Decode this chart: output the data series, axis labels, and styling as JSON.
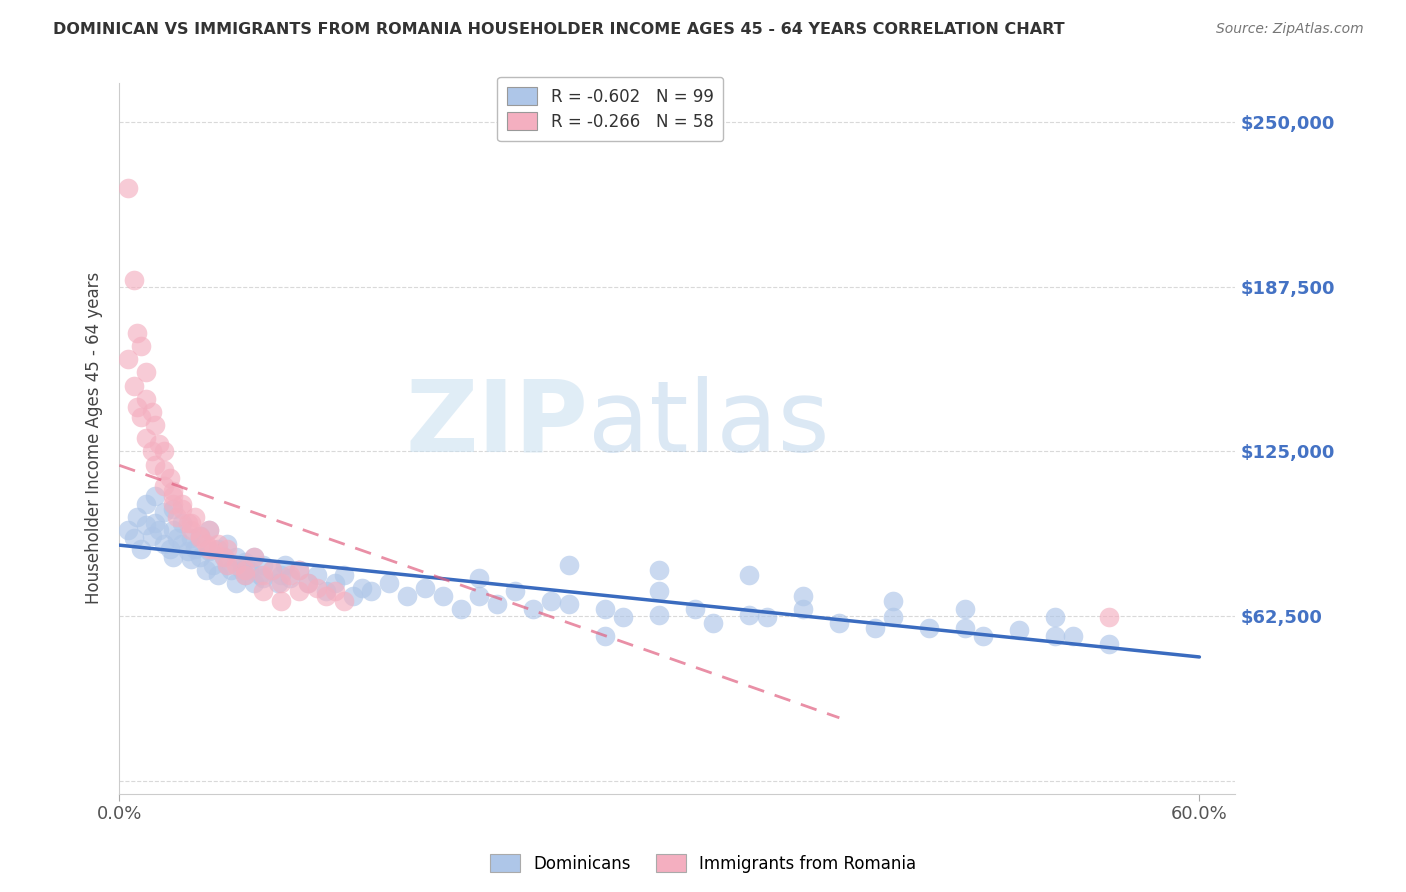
{
  "title": "DOMINICAN VS IMMIGRANTS FROM ROMANIA HOUSEHOLDER INCOME AGES 45 - 64 YEARS CORRELATION CHART",
  "source": "Source: ZipAtlas.com",
  "ylabel": "Householder Income Ages 45 - 64 years",
  "xlim": [
    0.0,
    0.62
  ],
  "ylim": [
    -5000,
    265000
  ],
  "yticks": [
    0,
    62500,
    125000,
    187500,
    250000
  ],
  "ytick_labels": [
    "",
    "$62,500",
    "$125,000",
    "$187,500",
    "$250,000"
  ],
  "xticks": [
    0.0,
    0.6
  ],
  "xtick_labels": [
    "0.0%",
    "60.0%"
  ],
  "dominican_R": -0.602,
  "dominican_N": 99,
  "romania_R": -0.266,
  "romania_N": 58,
  "dominican_color": "#aec6e8",
  "romania_color": "#f4afc0",
  "dominican_line_color": "#3a6bbf",
  "romania_line_color": "#e06080",
  "background_color": "#ffffff",
  "watermark_zip": "ZIP",
  "watermark_atlas": "atlas",
  "grid_color": "#d0d0d0",
  "title_color": "#333333",
  "axis_label_color": "#444444",
  "right_tick_color": "#4472c4",
  "dominican_x": [
    0.005,
    0.008,
    0.01,
    0.012,
    0.015,
    0.015,
    0.018,
    0.02,
    0.02,
    0.022,
    0.025,
    0.025,
    0.028,
    0.03,
    0.03,
    0.03,
    0.032,
    0.035,
    0.035,
    0.038,
    0.04,
    0.04,
    0.042,
    0.045,
    0.045,
    0.048,
    0.05,
    0.05,
    0.052,
    0.055,
    0.055,
    0.058,
    0.06,
    0.06,
    0.062,
    0.065,
    0.065,
    0.068,
    0.07,
    0.07,
    0.072,
    0.075,
    0.075,
    0.078,
    0.08,
    0.08,
    0.085,
    0.088,
    0.09,
    0.092,
    0.095,
    0.1,
    0.105,
    0.11,
    0.115,
    0.12,
    0.125,
    0.13,
    0.135,
    0.14,
    0.15,
    0.16,
    0.17,
    0.18,
    0.19,
    0.2,
    0.21,
    0.22,
    0.23,
    0.24,
    0.25,
    0.27,
    0.28,
    0.3,
    0.32,
    0.33,
    0.35,
    0.36,
    0.38,
    0.4,
    0.42,
    0.43,
    0.45,
    0.47,
    0.48,
    0.5,
    0.52,
    0.53,
    0.55,
    0.27,
    0.3,
    0.38,
    0.2,
    0.43,
    0.47,
    0.52,
    0.35,
    0.25,
    0.3
  ],
  "dominican_y": [
    95000,
    92000,
    100000,
    88000,
    105000,
    97000,
    93000,
    108000,
    98000,
    95000,
    90000,
    102000,
    88000,
    95000,
    103000,
    85000,
    92000,
    90000,
    98000,
    87000,
    92000,
    84000,
    88000,
    93000,
    85000,
    80000,
    87000,
    95000,
    82000,
    88000,
    78000,
    85000,
    82000,
    90000,
    80000,
    85000,
    75000,
    80000,
    83000,
    78000,
    80000,
    85000,
    75000,
    78000,
    82000,
    77000,
    80000,
    75000,
    78000,
    82000,
    77000,
    80000,
    75000,
    78000,
    72000,
    75000,
    78000,
    70000,
    73000,
    72000,
    75000,
    70000,
    73000,
    70000,
    65000,
    70000,
    67000,
    72000,
    65000,
    68000,
    67000,
    65000,
    62000,
    63000,
    65000,
    60000,
    63000,
    62000,
    65000,
    60000,
    58000,
    62000,
    58000,
    58000,
    55000,
    57000,
    55000,
    55000,
    52000,
    55000,
    72000,
    70000,
    77000,
    68000,
    65000,
    62000,
    78000,
    82000,
    80000
  ],
  "romania_x": [
    0.005,
    0.008,
    0.01,
    0.012,
    0.015,
    0.015,
    0.018,
    0.02,
    0.022,
    0.025,
    0.025,
    0.028,
    0.03,
    0.03,
    0.032,
    0.035,
    0.038,
    0.04,
    0.042,
    0.045,
    0.048,
    0.05,
    0.052,
    0.055,
    0.058,
    0.06,
    0.065,
    0.07,
    0.075,
    0.08,
    0.085,
    0.09,
    0.095,
    0.1,
    0.1,
    0.105,
    0.11,
    0.115,
    0.12,
    0.125,
    0.005,
    0.008,
    0.01,
    0.012,
    0.015,
    0.018,
    0.02,
    0.025,
    0.03,
    0.035,
    0.04,
    0.045,
    0.05,
    0.06,
    0.07,
    0.08,
    0.09,
    0.55
  ],
  "romania_y": [
    225000,
    190000,
    170000,
    165000,
    155000,
    145000,
    140000,
    135000,
    128000,
    125000,
    118000,
    115000,
    110000,
    105000,
    100000,
    105000,
    98000,
    95000,
    100000,
    92000,
    90000,
    95000,
    88000,
    90000,
    85000,
    88000,
    82000,
    80000,
    85000,
    78000,
    80000,
    75000,
    78000,
    80000,
    72000,
    75000,
    73000,
    70000,
    72000,
    68000,
    160000,
    150000,
    142000,
    138000,
    130000,
    125000,
    120000,
    112000,
    108000,
    103000,
    98000,
    93000,
    88000,
    82000,
    78000,
    72000,
    68000,
    62000
  ]
}
